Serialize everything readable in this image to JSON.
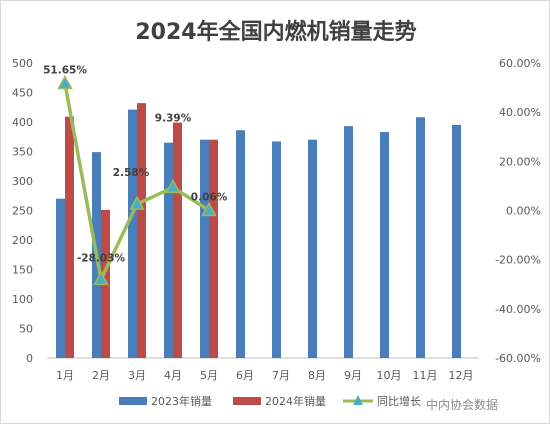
{
  "chart_data": {
    "type": "bar",
    "title": "2024年全国内燃机销量走势",
    "categories": [
      "1月",
      "2月",
      "3月",
      "4月",
      "5月",
      "6月",
      "7月",
      "8月",
      "9月",
      "10月",
      "11月",
      "12月"
    ],
    "series": [
      {
        "name": "2023年销量",
        "kind": "bar",
        "axis": "left",
        "values": [
          270,
          349,
          421,
          365,
          370,
          386,
          367,
          370,
          393,
          383,
          408,
          395
        ]
      },
      {
        "name": "2024年销量",
        "kind": "bar",
        "axis": "left",
        "values": [
          409,
          251,
          432,
          399,
          370,
          null,
          null,
          null,
          null,
          null,
          null,
          null
        ]
      },
      {
        "name": "同比增长",
        "kind": "line",
        "axis": "right",
        "values": [
          51.65,
          -28.03,
          2.58,
          9.39,
          0.06,
          null,
          null,
          null,
          null,
          null,
          null,
          null
        ],
        "labels": [
          "51.65%",
          "-28.03%",
          "2.58%",
          "9.39%",
          "0.06%"
        ]
      }
    ],
    "ylim_left": [
      0,
      500
    ],
    "yticks_left": [
      "0",
      "50",
      "100",
      "150",
      "200",
      "250",
      "300",
      "350",
      "400",
      "450",
      "500"
    ],
    "ylim_right": [
      -60,
      60
    ],
    "yticks_right": [
      "-60.00%",
      "-40.00%",
      "-20.00%",
      "0.00%",
      "20.00%",
      "40.00%",
      "60.00%"
    ],
    "legend_position": "bottom",
    "grid": false,
    "colors": {
      "bar2023": "#4a7ebb",
      "bar2024": "#be4b48",
      "line": "#9bbb59",
      "marker": "#4bacc6"
    }
  },
  "watermark": "中内协会数据"
}
